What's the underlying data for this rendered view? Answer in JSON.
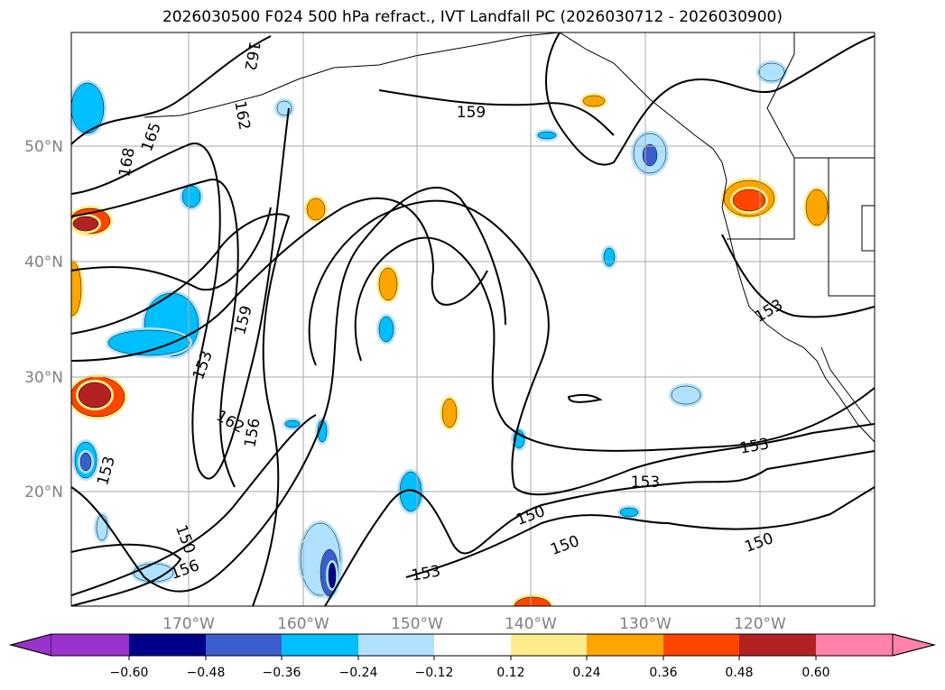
{
  "title": "2026030500 F024 500 hPa refract., IVT Landfall PC (2026030712 - 2026030900)",
  "map": {
    "lat_labels": [
      "50°N",
      "40°N",
      "30°N",
      "20°N"
    ],
    "lon_labels": [
      "170°W",
      "160°W",
      "150°W",
      "140°W",
      "130°W",
      "120°W"
    ],
    "contour_labels": [
      "162",
      "159",
      "165",
      "168",
      "162",
      "159",
      "153",
      "162",
      "156",
      "153",
      "153",
      "150",
      "150",
      "156",
      "150",
      "153",
      "153",
      "150",
      "153"
    ]
  },
  "colorbar": {
    "tick_labels": [
      "−0.60",
      "−0.48",
      "−0.36",
      "−0.24",
      "−0.12",
      "0.12",
      "0.24",
      "0.36",
      "0.48",
      "0.60"
    ],
    "colors": [
      "#9933cc",
      "#000088",
      "#3a5fcd",
      "#00bfff",
      "#b0e2ff",
      "#ffffff",
      "#ffec8b",
      "#ffa500",
      "#ff4500",
      "#b22222",
      "#ff82ab"
    ]
  }
}
